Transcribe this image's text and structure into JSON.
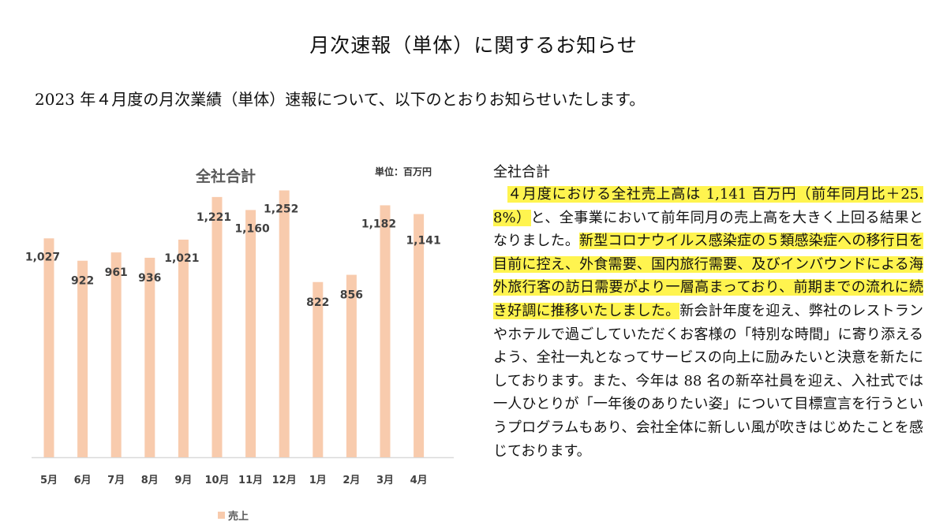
{
  "doc": {
    "title": "月次速報（単体）に関するお知らせ",
    "intro": "2023 年４月度の月次業績（単体）速報について、以下のとおりお知らせいたします。"
  },
  "chart_data": {
    "type": "bar",
    "title": "全社合計",
    "unit": "単位：百万円",
    "categories": [
      "5月",
      "6月",
      "7月",
      "8月",
      "9月",
      "10月",
      "11月",
      "12月",
      "1月",
      "2月",
      "3月",
      "4月"
    ],
    "series": [
      {
        "name": "売上",
        "values": [
          1027,
          922,
          961,
          936,
          1021,
          1221,
          1160,
          1252,
          822,
          856,
          1182,
          1141
        ]
      }
    ],
    "data_labels": [
      "1,027",
      "922",
      "961",
      "936",
      "1,021",
      "1,221",
      "1,160",
      "1,252",
      "822",
      "856",
      "1,182",
      "1,141"
    ],
    "ylim": [
      0,
      1350
    ],
    "legend_position": "bottom",
    "bar_color": "#f8cbad",
    "axis_color": "#d9d9d9",
    "label_color": "#404040"
  },
  "section": {
    "heading": "全社合計",
    "highlight_color": "#fff44f",
    "hl_1": "４月度における全社売上高は 1,141 百万円（前年同月比＋25.8%）",
    "text_1": "と、全事業において前年同月の売上高を大きく上回る結果となりました。",
    "hl_2": "新型コロナウイルス感染症の５類感染症への移行日を目前に控え、外食需要、国内旅行需要、及びインバウンドによる海外旅行客の訪日需要がより一層高まっており、前期までの流れに続き好調に推移いたしました。",
    "text_2": "新会計年度を迎え、弊社のレストランやホテルで過ごしていただくお客様の「特別な時間」に寄り添えるよう、全社一丸となってサービスの向上に励みたいと決意を新たにしております。また、今年は 88 名の新卒社員を迎え、入社式では一人ひとりが「一年後のありたい姿」について目標宣言を行うというプログラムもあり、会社全体に新しい風が吹きはじめたことを感じております。"
  }
}
